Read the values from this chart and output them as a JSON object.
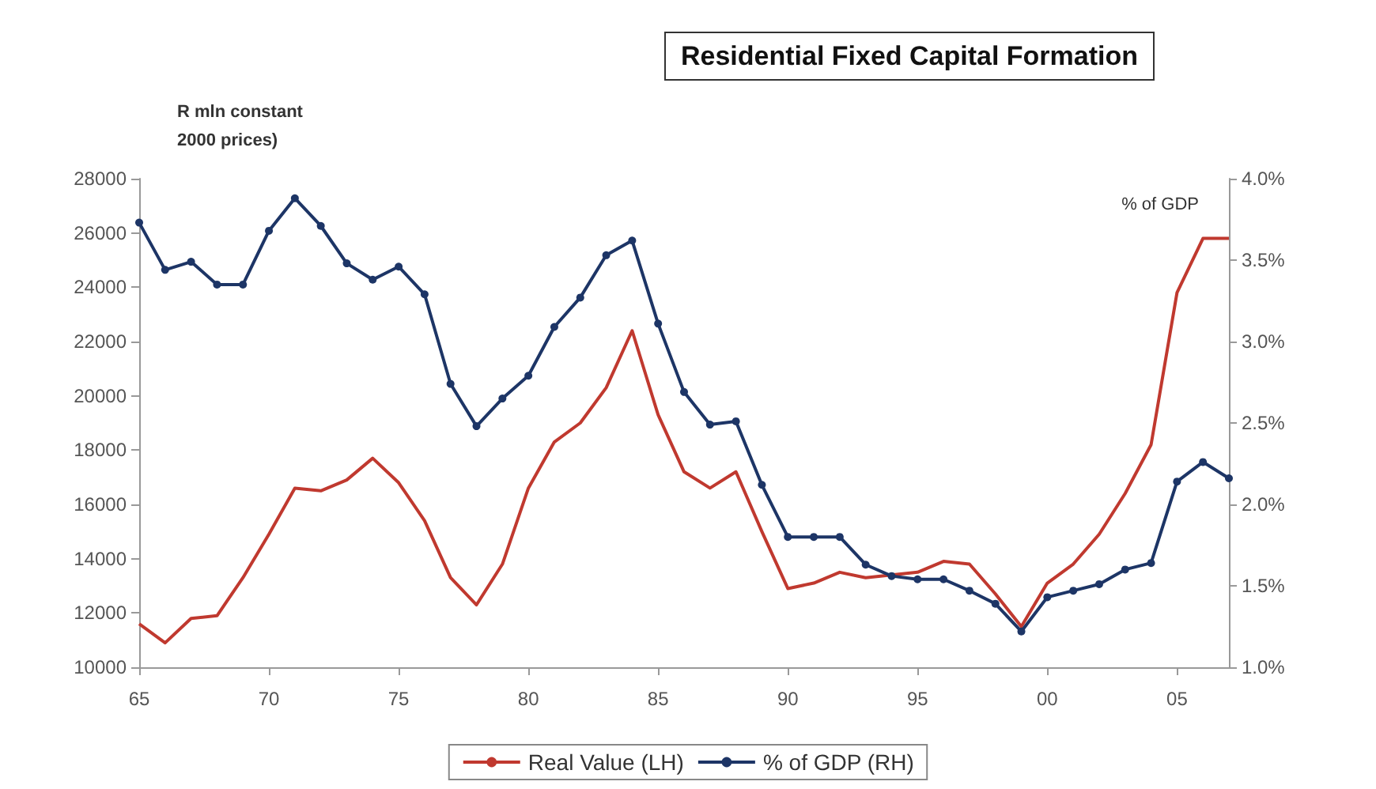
{
  "chart_data": {
    "type": "line",
    "title": "Residential Fixed Capital Formation",
    "ylabel": "R mln constant\n2000 prices)",
    "y2label": "% of GDP",
    "categories": [
      "65",
      null,
      null,
      null,
      null,
      "70",
      null,
      null,
      null,
      null,
      "75",
      null,
      null,
      null,
      null,
      "80",
      null,
      null,
      null,
      null,
      "85",
      null,
      null,
      null,
      null,
      "90",
      null,
      null,
      null,
      null,
      "95",
      null,
      null,
      null,
      null,
      "00",
      null,
      null,
      null,
      null,
      "05",
      null,
      null
    ],
    "series": [
      {
        "name": "Real Value (LH)",
        "color": "#c0392f",
        "marker": "none",
        "values": [
          11600,
          10900,
          11800,
          11900,
          13300,
          14900,
          16600,
          16500,
          16900,
          17700,
          16800,
          15400,
          13300,
          12300,
          13800,
          16600,
          18300,
          19000,
          20300,
          22400,
          19300,
          17200,
          16600,
          17200,
          15000,
          12900,
          13100,
          13500,
          13300,
          13400,
          13500,
          13900,
          13800,
          12700,
          11500,
          13100,
          13800,
          14900,
          16400,
          18200,
          23800,
          25800,
          25800
        ]
      },
      {
        "name": "% of GDP (RH)",
        "color": "#1d3566",
        "marker": "circle",
        "axis": "y2",
        "values": [
          3.73,
          3.44,
          3.49,
          3.35,
          3.35,
          3.68,
          3.88,
          3.71,
          3.48,
          3.38,
          3.46,
          3.29,
          2.74,
          2.48,
          2.65,
          2.79,
          3.09,
          3.27,
          3.53,
          3.62,
          3.11,
          2.69,
          2.49,
          2.51,
          2.12,
          1.8,
          1.8,
          1.8,
          1.63,
          1.56,
          1.54,
          1.54,
          1.47,
          1.39,
          1.22,
          1.43,
          1.47,
          1.51,
          1.6,
          1.64,
          2.14,
          2.26,
          2.16
        ]
      }
    ],
    "ylim": [
      10000,
      28000
    ],
    "yticks": [
      10000,
      12000,
      14000,
      16000,
      18000,
      20000,
      22000,
      24000,
      26000,
      28000
    ],
    "y2lim": [
      1.0,
      4.0
    ],
    "y2ticks": [
      {
        "value": 1.0,
        "label": "1.0%"
      },
      {
        "value": 1.5,
        "label": "1.5%"
      },
      {
        "value": 2.0,
        "label": "2.0%"
      },
      {
        "value": 2.5,
        "label": "2.5%"
      },
      {
        "value": 3.0,
        "label": "3.0%"
      },
      {
        "value": 3.5,
        "label": "3.5%"
      },
      {
        "value": 4.0,
        "label": "4.0%"
      }
    ],
    "grid": false,
    "legend": "bottom"
  }
}
